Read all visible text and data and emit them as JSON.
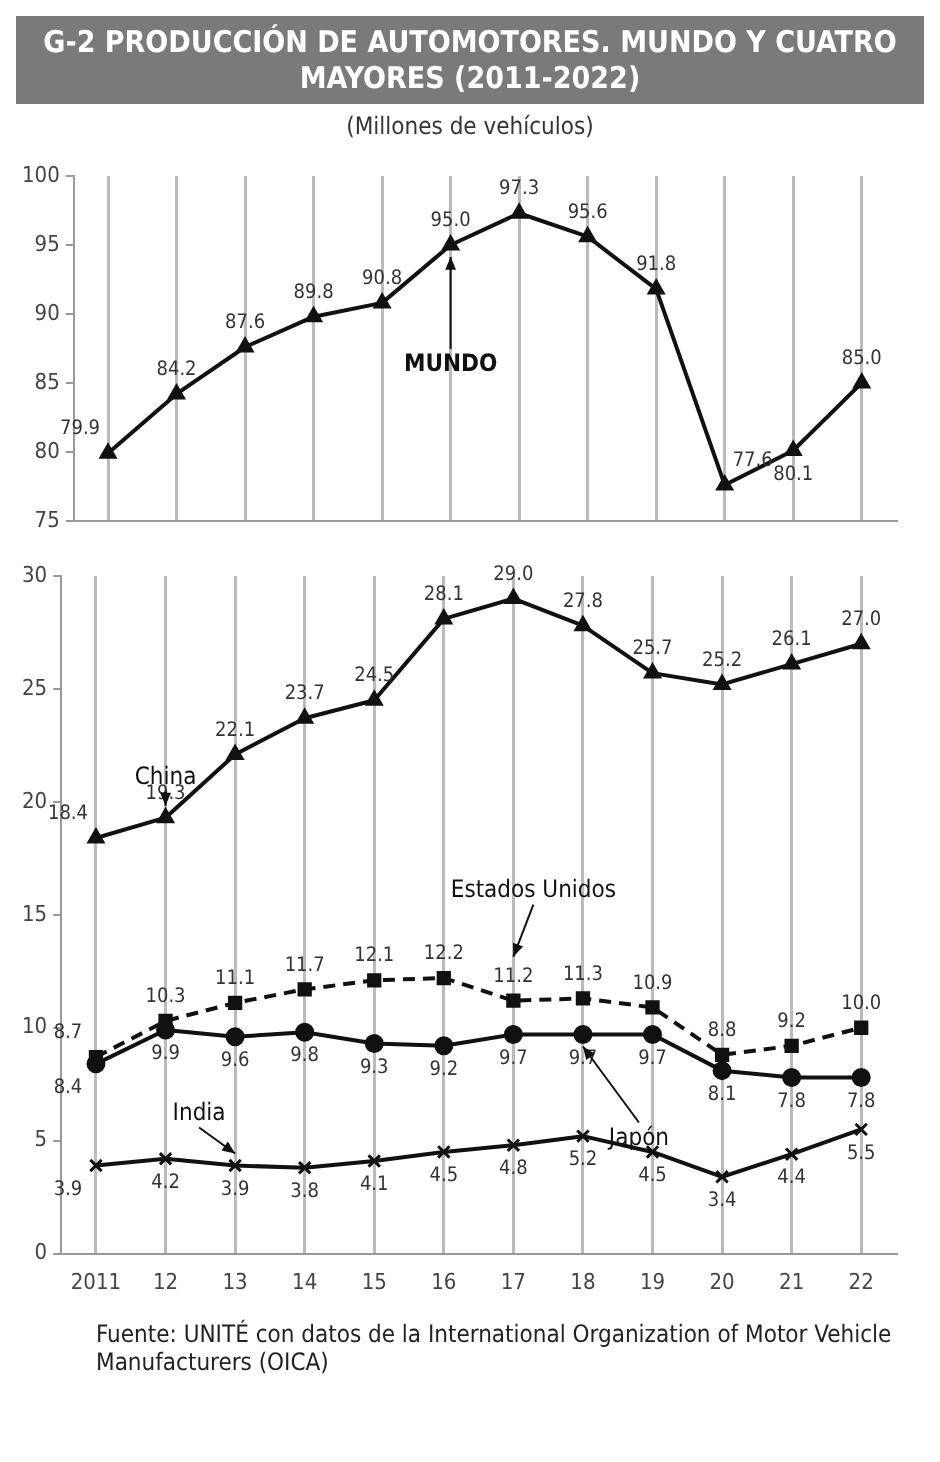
{
  "chart_data": [
    {
      "type": "line",
      "title": "G-2 PRODUCCIÓN DE AUTOMOTORES. MUNDO Y CUATRO MAYORES (2011-2022)",
      "subtitle": "(Millones de vehículos)",
      "categories": [
        "2011",
        "12",
        "13",
        "14",
        "15",
        "16",
        "17",
        "18",
        "19",
        "20",
        "21",
        "22"
      ],
      "ylim": [
        75,
        100
      ],
      "yticks": [
        75,
        80,
        85,
        90,
        95,
        100
      ],
      "grid": "x",
      "legend": false,
      "tick_labels": "y",
      "series": [
        {
          "name": "MUNDO",
          "color": "#111111",
          "marker": "triangle",
          "line_style": "solid",
          "values": [
            79.9,
            84.2,
            87.6,
            89.8,
            90.8,
            95.0,
            97.3,
            95.6,
            91.8,
            77.6,
            80.1,
            85.0
          ],
          "value_labels": [
            "79.9",
            "84.2",
            "87.6",
            "89.8",
            "90.8",
            "95.0",
            "97.3",
            "95.6",
            "91.8",
            "77.6",
            "80.1",
            "85.0"
          ]
        }
      ]
    },
    {
      "type": "line",
      "categories": [
        "2011",
        "12",
        "13",
        "14",
        "15",
        "16",
        "17",
        "18",
        "19",
        "20",
        "21",
        "22"
      ],
      "ylim": [
        0,
        30
      ],
      "yticks": [
        0,
        5,
        10,
        15,
        20,
        25,
        30
      ],
      "grid": "x",
      "legend": false,
      "annotations": [
        "Fuente: UNITÉ con datos de la International Organization of Motor Vehicle Manufacturers (OICA)"
      ],
      "series": [
        {
          "name": "China",
          "color": "#111111",
          "marker": "triangle",
          "line_style": "solid",
          "values": [
            18.4,
            19.3,
            22.1,
            23.7,
            24.5,
            28.1,
            29.0,
            27.8,
            25.7,
            25.2,
            26.1,
            27.0
          ],
          "value_labels": [
            "18.4",
            "19.3",
            "22.1",
            "23.7",
            "24.5",
            "28.1",
            "29.0",
            "27.8",
            "25.7",
            "25.2",
            "26.1",
            "27.0"
          ]
        },
        {
          "name": "Estados Unidos",
          "color": "#111111",
          "marker": "square",
          "line_style": "dashed",
          "values": [
            8.7,
            10.3,
            11.1,
            11.7,
            12.1,
            12.2,
            11.2,
            11.3,
            10.9,
            8.8,
            9.2,
            10.0
          ],
          "value_labels": [
            "8.7",
            "10.3",
            "11.1",
            "11.7",
            "12.1",
            "12.2",
            "11.2",
            "11.3",
            "10.9",
            "8.8",
            "9.2",
            "10.0"
          ]
        },
        {
          "name": "Japón",
          "color": "#111111",
          "marker": "circle",
          "line_style": "solid",
          "values": [
            8.4,
            9.9,
            9.6,
            9.8,
            9.3,
            9.2,
            9.7,
            9.7,
            9.7,
            8.1,
            7.8,
            7.8
          ],
          "value_labels": [
            "8.4",
            "9.9",
            "9.6",
            "9.8",
            "9.3",
            "9.2",
            "9.7",
            "9.7",
            "9.7",
            "8.1",
            "7.8",
            "7.8"
          ]
        },
        {
          "name": "India",
          "color": "#111111",
          "marker": "cross",
          "line_style": "solid",
          "values": [
            3.9,
            4.2,
            3.9,
            3.8,
            4.1,
            4.5,
            4.8,
            5.2,
            4.5,
            3.4,
            4.4,
            5.5
          ],
          "value_labels": [
            "3.9",
            "4.2",
            "3.9",
            "3.8",
            "4.1",
            "4.5",
            "4.8",
            "5.2",
            "4.5",
            "3.4",
            "4.4",
            "5.5"
          ]
        }
      ]
    }
  ]
}
